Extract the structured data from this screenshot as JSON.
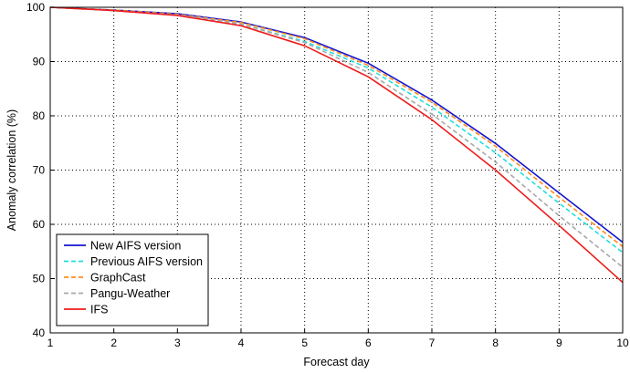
{
  "chart_data": {
    "type": "line",
    "title": "",
    "xlabel": "Forecast day",
    "ylabel": "Anomaly correlation (%)",
    "xlim": [
      1,
      10
    ],
    "ylim": [
      40,
      100
    ],
    "x_ticks": [
      "1",
      "2",
      "3",
      "4",
      "5",
      "6",
      "7",
      "8",
      "9",
      "10"
    ],
    "y_ticks": [
      "40",
      "50",
      "60",
      "70",
      "80",
      "90",
      "100"
    ],
    "grid": "dotted",
    "legend_position": "lower-left",
    "x": [
      1,
      2,
      3,
      4,
      5,
      6,
      7,
      8,
      9,
      10
    ],
    "series": [
      {
        "name": "New AIFS version",
        "color": "#1515d0",
        "dash": "solid",
        "values": [
          100,
          99.5,
          98.8,
          97.3,
          94.4,
          89.7,
          82.9,
          74.9,
          65.8,
          56.7
        ]
      },
      {
        "name": "Previous AIFS version",
        "color": "#22dddd",
        "dash": "dashed",
        "values": [
          100,
          99.4,
          98.6,
          96.9,
          93.7,
          88.8,
          81.6,
          73.2,
          63.9,
          54.8
        ]
      },
      {
        "name": "GraphCast",
        "color": "#ff8c1a",
        "dash": "dashed",
        "values": [
          100,
          99.5,
          98.7,
          97.2,
          94.2,
          89.3,
          82.5,
          74.4,
          65.0,
          55.9
        ]
      },
      {
        "name": "Pangu-Weather",
        "color": "#a8a8a8",
        "dash": "dashed",
        "values": [
          100,
          99.4,
          98.6,
          96.9,
          93.5,
          88.0,
          80.3,
          71.5,
          61.6,
          52.1
        ]
      },
      {
        "name": "IFS",
        "color": "#ee1c1c",
        "dash": "solid",
        "values": [
          100,
          99.4,
          98.5,
          96.6,
          92.9,
          87.2,
          79.3,
          70.0,
          59.8,
          49.3
        ]
      }
    ]
  }
}
